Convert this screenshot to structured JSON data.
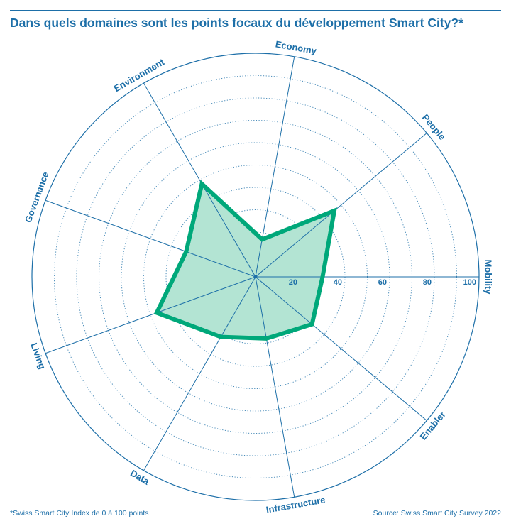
{
  "title": "Dans quels domaines sont les points focaux du développement Smart City?*",
  "footnote": "*Swiss Smart City Index de 0 à 100 points",
  "source": "Source: Swiss Smart City Survey 2022",
  "colors": {
    "text": "#1d6fa8",
    "grid": "#1d6fa8",
    "line": "#00a87a",
    "fill": "#b3e4d3"
  },
  "chart_data": {
    "type": "radar",
    "title": "Dans quels domaines sont les points focaux du développement Smart City?*",
    "categories": [
      "Mobility",
      "People",
      "Economy",
      "Environment",
      "Governance",
      "Living",
      "Data",
      "Infrastructure",
      "Enabler"
    ],
    "values": [
      30,
      46,
      17,
      48,
      33,
      47,
      31,
      28,
      33
    ],
    "rlim": [
      0,
      100
    ],
    "tick_labels": [
      "20",
      "40",
      "60",
      "80",
      "100"
    ],
    "ticks": [
      20,
      40,
      60,
      80,
      100
    ],
    "grid": true,
    "grid_step": 10
  }
}
